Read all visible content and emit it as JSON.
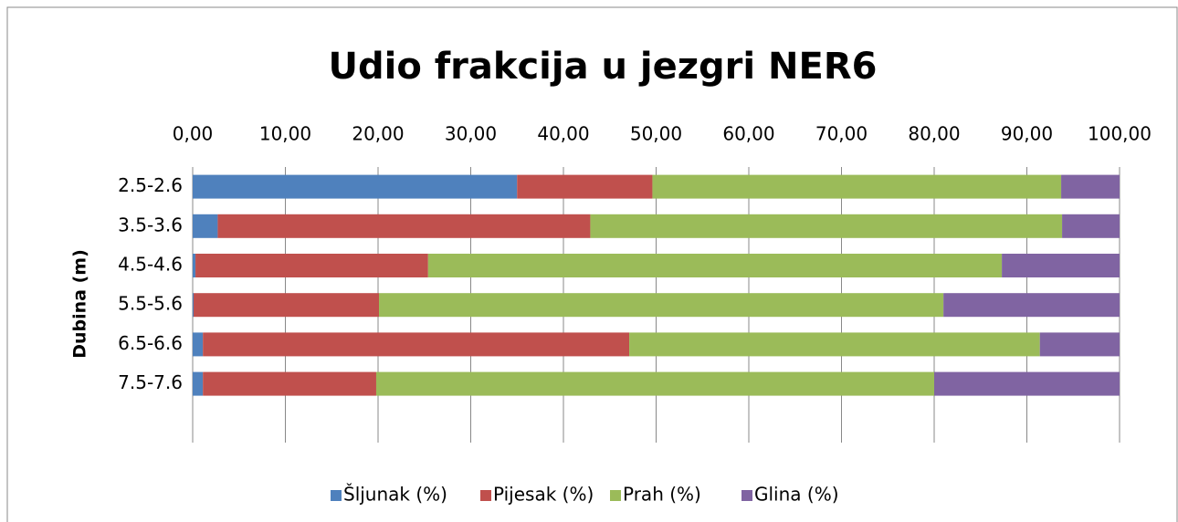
{
  "chart_data": {
    "type": "stacked-barh",
    "title": "Udio frakcija u jezgri NER6",
    "y_label": "Dubina (m)",
    "categories": [
      "2.5-2.6",
      "3.5-3.6",
      "4.5-4.6",
      "5.5-5.6",
      "6.5-6.6",
      "7.5-7.6"
    ],
    "series": [
      {
        "name": "Šljunak (%)",
        "color": "#4f81bd",
        "values": [
          35.0,
          2.7,
          0.3,
          0.1,
          1.1,
          1.1
        ]
      },
      {
        "name": "Pijesak (%)",
        "color": "#c0504d",
        "values": [
          14.6,
          40.2,
          25.1,
          20.0,
          46.0,
          18.7
        ]
      },
      {
        "name": "Prah (%)",
        "color": "#9bbb59",
        "values": [
          44.1,
          50.9,
          61.9,
          60.9,
          44.3,
          60.2
        ]
      },
      {
        "name": "Glina (%)",
        "color": "#8064a2",
        "values": [
          6.3,
          6.2,
          12.7,
          19.0,
          8.6,
          20.0
        ]
      }
    ],
    "xlim": [
      0,
      100
    ],
    "xticks": [
      {
        "value": 0,
        "label": "0,00"
      },
      {
        "value": 10,
        "label": "10,00"
      },
      {
        "value": 20,
        "label": "20,00"
      },
      {
        "value": 30,
        "label": "30,00"
      },
      {
        "value": 40,
        "label": "40,00"
      },
      {
        "value": 50,
        "label": "50,00"
      },
      {
        "value": 60,
        "label": "60,00"
      },
      {
        "value": 70,
        "label": "70,00"
      },
      {
        "value": 80,
        "label": "80,00"
      },
      {
        "value": 90,
        "label": "90,00"
      },
      {
        "value": 100,
        "label": "100,00"
      }
    ],
    "grid": true,
    "legend": "bottom"
  }
}
